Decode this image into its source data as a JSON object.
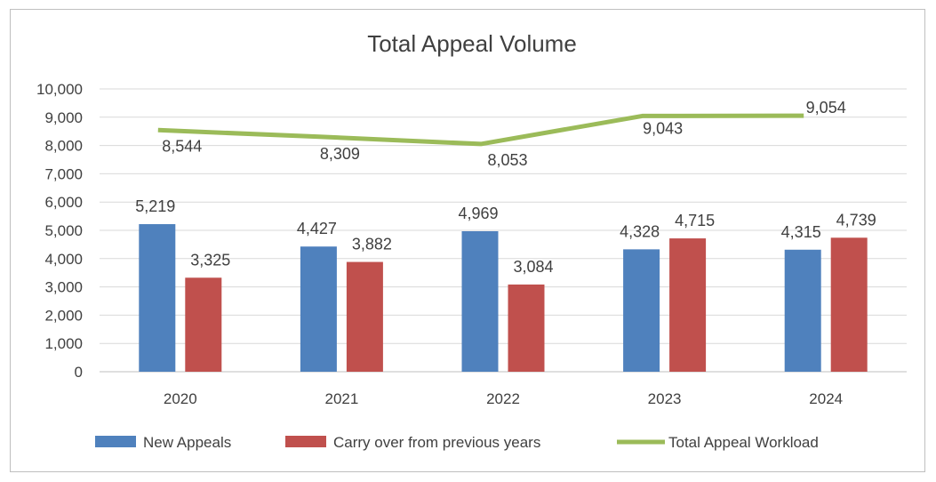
{
  "chart_data": {
    "type": "bar",
    "title": "Total Appeal Volume",
    "categories": [
      "2020",
      "2021",
      "2022",
      "2023",
      "2024"
    ],
    "ylim": [
      0,
      10000
    ],
    "yticks": [
      "0",
      "1,000",
      "2,000",
      "3,000",
      "4,000",
      "5,000",
      "6,000",
      "7,000",
      "8,000",
      "9,000",
      "10,000"
    ],
    "grid": true,
    "legend_position": "bottom",
    "series": [
      {
        "name": "New Appeals",
        "type": "bar",
        "color": "#4f81bd",
        "values": [
          5219,
          4427,
          4969,
          4328,
          4315
        ],
        "labels": [
          "5,219",
          "4,427",
          "4,969",
          "4,328",
          "4,315"
        ]
      },
      {
        "name": "Carry over from previous years",
        "type": "bar",
        "color": "#c0504d",
        "values": [
          3325,
          3882,
          3084,
          4715,
          4739
        ],
        "labels": [
          "3,325",
          "3,882",
          "3,084",
          "4,715",
          "4,739"
        ]
      },
      {
        "name": "Total Appeal Workload",
        "type": "line",
        "color": "#9bbb59",
        "values": [
          8544,
          8309,
          8053,
          9043,
          9054
        ],
        "labels": [
          "8,544",
          "8,309",
          "8,053",
          "9,043",
          "9,054"
        ]
      }
    ]
  }
}
